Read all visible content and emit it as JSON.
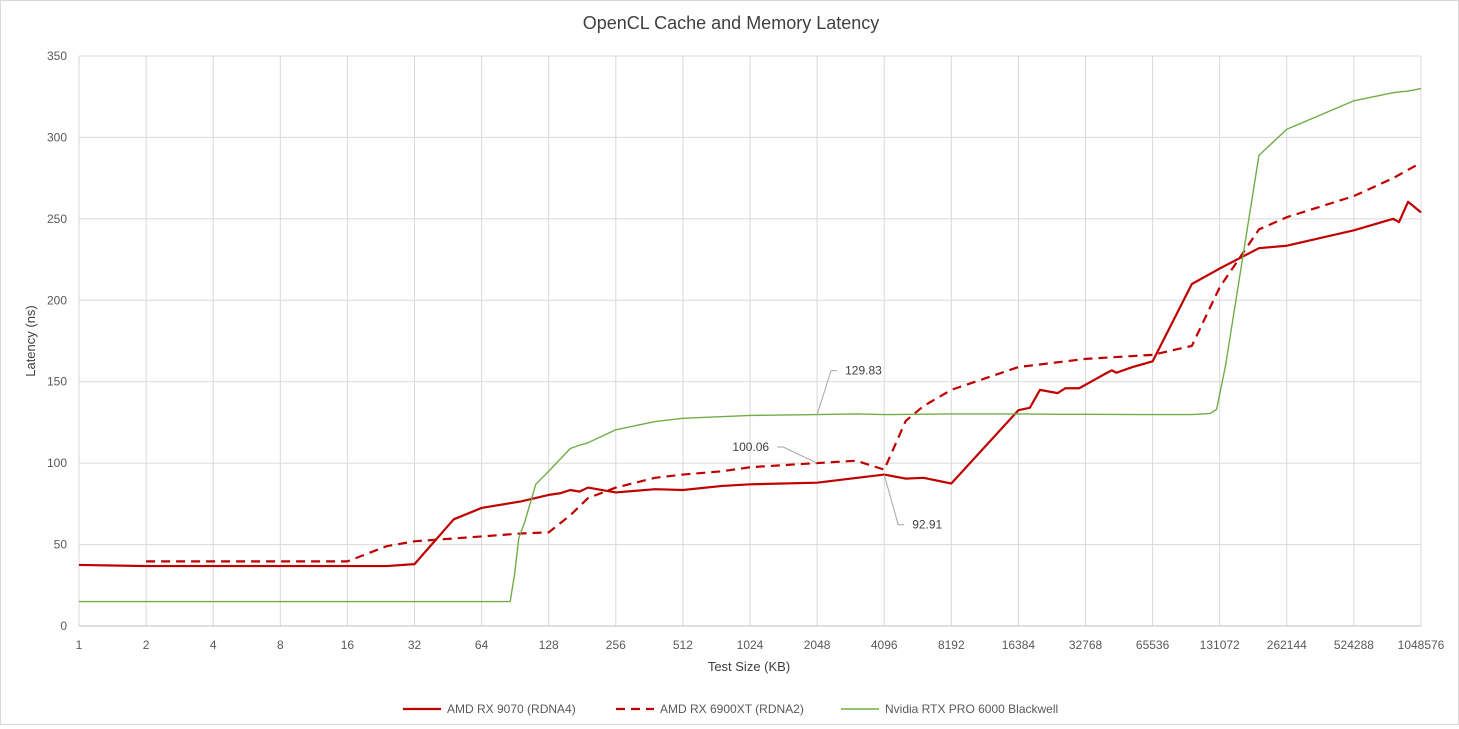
{
  "chart_data": {
    "type": "line",
    "title": "OpenCL Cache and Memory Latency",
    "xlabel": "Test Size (KB)",
    "ylabel": "Latency (ns)",
    "x_scale": "log2",
    "xlim": [
      1,
      1048576
    ],
    "ylim": [
      0,
      350
    ],
    "x_ticks": [
      "1",
      "2",
      "4",
      "8",
      "16",
      "32",
      "64",
      "128",
      "256",
      "512",
      "1024",
      "2048",
      "4096",
      "8192",
      "16384",
      "32768",
      "65536",
      "131072",
      "262144",
      "524288",
      "1048576"
    ],
    "y_ticks": [
      "0",
      "50",
      "100",
      "150",
      "200",
      "250",
      "300",
      "350"
    ],
    "grid": "on",
    "legend_position": "bottom",
    "series": [
      {
        "name": "AMD RX 9070 (RDNA4)",
        "color": "#c00000",
        "style": "solid",
        "points": [
          [
            1,
            37.5
          ],
          [
            2,
            36.8
          ],
          [
            4,
            36.8
          ],
          [
            8,
            36.8
          ],
          [
            16,
            36.8
          ],
          [
            24,
            36.8
          ],
          [
            32,
            38
          ],
          [
            48,
            65.5
          ],
          [
            64,
            72.5
          ],
          [
            96,
            76.5
          ],
          [
            128,
            80.5
          ],
          [
            144,
            81.5
          ],
          [
            160,
            83.5
          ],
          [
            176,
            82.5
          ],
          [
            192,
            85
          ],
          [
            256,
            82
          ],
          [
            384,
            84
          ],
          [
            512,
            83.5
          ],
          [
            768,
            86
          ],
          [
            1024,
            87
          ],
          [
            2048,
            88
          ],
          [
            4096,
            93
          ],
          [
            5120,
            90.5
          ],
          [
            6144,
            91
          ],
          [
            8192,
            87.5
          ],
          [
            16384,
            132.5
          ],
          [
            18432,
            134
          ],
          [
            20480,
            145
          ],
          [
            24576,
            143
          ],
          [
            26624,
            146
          ],
          [
            30720,
            146
          ],
          [
            40960,
            155.5
          ],
          [
            43008,
            157
          ],
          [
            45056,
            155.5
          ],
          [
            53248,
            159
          ],
          [
            65536,
            162.5
          ],
          [
            98304,
            210
          ],
          [
            131072,
            219.5
          ],
          [
            196608,
            232
          ],
          [
            262144,
            233.5
          ],
          [
            524288,
            243
          ],
          [
            786432,
            250
          ],
          [
            835584,
            248
          ],
          [
            917504,
            260.5
          ],
          [
            1048576,
            254
          ]
        ]
      },
      {
        "name": "AMD RX 6900XT (RDNA2)",
        "color": "#c00000",
        "style": "dashed",
        "points": [
          [
            2,
            39.7
          ],
          [
            4,
            39.7
          ],
          [
            8,
            39.7
          ],
          [
            16,
            39.7
          ],
          [
            24,
            49
          ],
          [
            32,
            52
          ],
          [
            64,
            55
          ],
          [
            96,
            56.8
          ],
          [
            128,
            57.5
          ],
          [
            160,
            68
          ],
          [
            192,
            78.5
          ],
          [
            256,
            85
          ],
          [
            384,
            91
          ],
          [
            512,
            93
          ],
          [
            768,
            95
          ],
          [
            1024,
            97.5
          ],
          [
            2048,
            100.06
          ],
          [
            3072,
            101.5
          ],
          [
            4096,
            96
          ],
          [
            5120,
            126
          ],
          [
            6144,
            135
          ],
          [
            8192,
            145
          ],
          [
            16384,
            159
          ],
          [
            32768,
            164
          ],
          [
            65536,
            166.5
          ],
          [
            98304,
            172
          ],
          [
            131072,
            208
          ],
          [
            196608,
            243.5
          ],
          [
            262144,
            251
          ],
          [
            524288,
            264
          ],
          [
            786432,
            275
          ],
          [
            1048576,
            284.5
          ]
        ]
      },
      {
        "name": "Nvidia RTX PRO 6000 Blackwell",
        "color": "#70ad47",
        "style": "solid",
        "points": [
          [
            1,
            15
          ],
          [
            64,
            15
          ],
          [
            86,
            15
          ],
          [
            90,
            32
          ],
          [
            94,
            54
          ],
          [
            100,
            64
          ],
          [
            112,
            87
          ],
          [
            128,
            95
          ],
          [
            160,
            109
          ],
          [
            176,
            111
          ],
          [
            192,
            112.5
          ],
          [
            256,
            120.5
          ],
          [
            384,
            125.5
          ],
          [
            512,
            127.5
          ],
          [
            1024,
            129.3
          ],
          [
            2048,
            129.83
          ],
          [
            3072,
            130.2
          ],
          [
            4096,
            129.8
          ],
          [
            8192,
            130.2
          ],
          [
            16384,
            130.2
          ],
          [
            24576,
            130
          ],
          [
            32768,
            130
          ],
          [
            65536,
            129.8
          ],
          [
            98304,
            129.8
          ],
          [
            118784,
            130.5
          ],
          [
            126976,
            133
          ],
          [
            139264,
            160
          ],
          [
            196608,
            289
          ],
          [
            262144,
            305
          ],
          [
            524288,
            322.5
          ],
          [
            786432,
            327.5
          ],
          [
            917504,
            328.5
          ],
          [
            1048576,
            330
          ]
        ]
      }
    ],
    "annotations": [
      {
        "text": "129.83",
        "x": 2048,
        "y": 129.83
      },
      {
        "text": "100.06",
        "x": 2048,
        "y": 100.06
      },
      {
        "text": "92.91",
        "x": 4096,
        "y": 92.91
      }
    ]
  }
}
